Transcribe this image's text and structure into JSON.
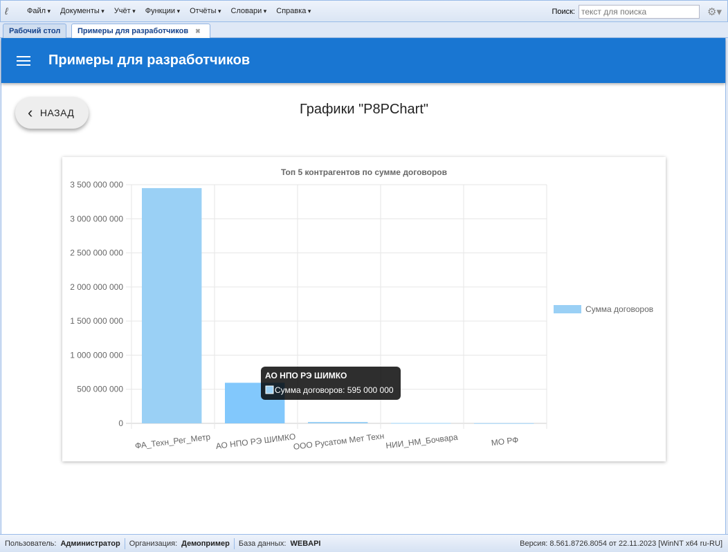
{
  "menu": {
    "items": [
      "Файл",
      "Документы",
      "Учёт",
      "Функции",
      "Отчёты",
      "Словари",
      "Справка"
    ],
    "search_label": "Поиск:",
    "search_placeholder": "текст для поиска"
  },
  "tabs": [
    {
      "label": "Рабочий стол"
    },
    {
      "label": "Примеры для разработчиков",
      "active": true
    }
  ],
  "appbar": {
    "title": "Примеры для разработчиков"
  },
  "back_label": "НАЗАД",
  "page_title": "Графики \"P8PChart\"",
  "colors": {
    "accent": "#1976d2",
    "bar": "#9ad0f5",
    "bar_hover": "#82c8fc"
  },
  "chart_data": {
    "type": "bar",
    "title": "Топ 5 контрагентов по сумме договоров",
    "categories": [
      "ФА_Техн_Рег_Метр",
      "АО НПО РЭ ШИМКО",
      "ООО Русатом Мет Техн",
      "НИИ_НМ_Бочвара",
      "МО РФ"
    ],
    "series": [
      {
        "name": "Сумма договоров",
        "values": [
          3450000000,
          595000000,
          20000000,
          5000000,
          3000000
        ]
      }
    ],
    "ylim": [
      0,
      3500000000
    ],
    "yticks": [
      "0",
      "500 000 000",
      "1 000 000 000",
      "1 500 000 000",
      "2 000 000 000",
      "2 500 000 000",
      "3 000 000 000",
      "3 500 000 000"
    ],
    "grid": true,
    "legend": "right",
    "tooltip": {
      "title": "АО НПО РЭ ШИМКО",
      "text": "Сумма договоров: 595 000 000"
    }
  },
  "status": {
    "user_label": "Пользователь:",
    "user": "Администратор",
    "org_label": "Организация:",
    "org": "Демопример",
    "db_label": "База данных:",
    "db": "WEBAPI",
    "version": "Версия: 8.561.8726.8054 от 22.11.2023 [WinNT x64 ru-RU]"
  }
}
